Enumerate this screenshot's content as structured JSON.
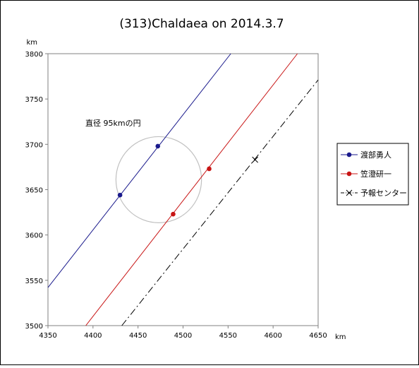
{
  "chart_data": {
    "type": "scatter",
    "title": "(313)Chaldaea on 2014.3.7",
    "xunit": "km",
    "yunit": "km",
    "xlim": [
      4350,
      4650
    ],
    "ylim": [
      3500,
      3800
    ],
    "xticks": [
      4350,
      4400,
      4450,
      4500,
      4550,
      4600,
      4650
    ],
    "yticks": [
      3500,
      3550,
      3600,
      3650,
      3700,
      3750,
      3800
    ],
    "grid": false,
    "legend_position": "right",
    "annotation": "直径 95kmの円",
    "circle": {
      "center": [
        4473,
        3661
      ],
      "diameter": 95
    },
    "series": [
      {
        "name": "渡部勇人",
        "color": "#1a1a8c",
        "marker": "circle",
        "line": {
          "start": [
            4350,
            3542
          ],
          "end": [
            4553,
            3800
          ]
        },
        "points": [
          [
            4430,
            3644
          ],
          [
            4472,
            3698
          ]
        ]
      },
      {
        "name": "笠澄研一",
        "color": "#c81414",
        "marker": "circle",
        "line": {
          "start": [
            4392,
            3500
          ],
          "end": [
            4627,
            3800
          ]
        },
        "points": [
          [
            4489,
            3623
          ],
          [
            4529,
            3673
          ]
        ]
      },
      {
        "name": "予報センター",
        "color": "#000000",
        "marker": "x",
        "dash": "dash-dot",
        "line": {
          "start": [
            4432,
            3500
          ],
          "end": [
            4650,
            3771
          ]
        },
        "points": [
          [
            4580,
            3683
          ]
        ]
      }
    ]
  }
}
